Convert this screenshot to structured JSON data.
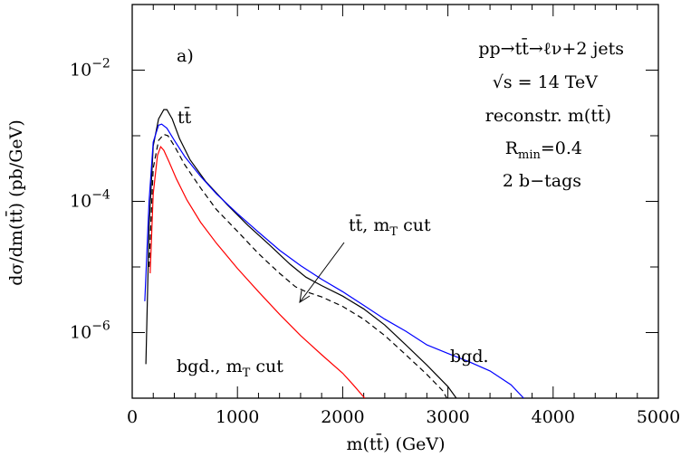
{
  "chart_data": {
    "type": "line",
    "panel_label": "a)",
    "xlabel": "m(tt̄) (GeV)",
    "ylabel": "dσ/dm(tt̄) (pb/GeV)",
    "xlim": [
      0,
      5000
    ],
    "ylim_log10": [
      -7,
      -1
    ],
    "log_y": true,
    "x_ticks": [
      "0",
      "1000",
      "2000",
      "3000",
      "4000",
      "5000"
    ],
    "y_ticks": [
      {
        "exp": -6,
        "base": "10",
        "power": "−6"
      },
      {
        "exp": -4,
        "base": "10",
        "power": "−4"
      },
      {
        "exp": -2,
        "base": "10",
        "power": "−2"
      }
    ],
    "grid": false,
    "info_lines": {
      "process": "pp→tt̄→ℓν+2 jets",
      "energy": "√s = 14 TeV",
      "reco": "reconstr. m(tt̄)",
      "rmin": "R_min=0.4",
      "btags": "2 b−tags"
    },
    "series": [
      {
        "name": "tt̄",
        "color": "#000000",
        "dash": "none",
        "points": [
          [
            130,
            3.3e-07
          ],
          [
            160,
            4e-05
          ],
          [
            200,
            0.0007
          ],
          [
            250,
            0.0018
          ],
          [
            300,
            0.0025
          ],
          [
            330,
            0.0025
          ],
          [
            380,
            0.0018
          ],
          [
            450,
            0.0009
          ],
          [
            550,
            0.00043
          ],
          [
            700,
            0.0002
          ],
          [
            900,
            9e-05
          ],
          [
            1100,
            4.3e-05
          ],
          [
            1300,
            2.2e-05
          ],
          [
            1500,
            1.1e-05
          ],
          [
            1650,
            7e-06
          ],
          [
            1800,
            5.2e-06
          ],
          [
            2000,
            3.6e-06
          ],
          [
            2200,
            2.3e-06
          ],
          [
            2400,
            1.3e-06
          ],
          [
            2600,
            6.5e-07
          ],
          [
            2800,
            3.2e-07
          ],
          [
            3000,
            1.5e-07
          ],
          [
            3080,
            1e-07
          ]
        ]
      },
      {
        "name": "tt̄, m_T cut",
        "color": "#000000",
        "dash": "6,4",
        "points": [
          [
            160,
            1e-05
          ],
          [
            200,
            0.00032
          ],
          [
            250,
            0.00085
          ],
          [
            300,
            0.00105
          ],
          [
            340,
            0.001
          ],
          [
            400,
            0.0007
          ],
          [
            500,
            0.00036
          ],
          [
            650,
            0.00016
          ],
          [
            800,
            7.5e-05
          ],
          [
            1000,
            3.5e-05
          ],
          [
            1200,
            1.6e-05
          ],
          [
            1400,
            8e-06
          ],
          [
            1550,
            5e-06
          ],
          [
            1650,
            4.2e-06
          ],
          [
            1800,
            3.5e-06
          ],
          [
            2000,
            2.5e-06
          ],
          [
            2200,
            1.6e-06
          ],
          [
            2400,
            9e-07
          ],
          [
            2600,
            4.6e-07
          ],
          [
            2800,
            2.3e-07
          ],
          [
            2950,
            1.3e-07
          ],
          [
            2990,
            1e-07
          ]
        ]
      },
      {
        "name": "bgd.",
        "color": "#0000ff",
        "dash": "none",
        "points": [
          [
            120,
            3e-06
          ],
          [
            160,
            0.0001
          ],
          [
            200,
            0.0008
          ],
          [
            250,
            0.00145
          ],
          [
            280,
            0.0015
          ],
          [
            330,
            0.0013
          ],
          [
            400,
            0.00085
          ],
          [
            500,
            0.00048
          ],
          [
            650,
            0.00024
          ],
          [
            800,
            0.00013
          ],
          [
            1000,
            6.5e-05
          ],
          [
            1200,
            3.4e-05
          ],
          [
            1400,
            1.8e-05
          ],
          [
            1600,
            1.05e-05
          ],
          [
            1800,
            6.5e-06
          ],
          [
            2000,
            4.2e-06
          ],
          [
            2200,
            2.6e-06
          ],
          [
            2400,
            1.6e-06
          ],
          [
            2600,
            1.05e-06
          ],
          [
            2800,
            6.5e-07
          ],
          [
            3000,
            4.8e-07
          ],
          [
            3200,
            3.6e-07
          ],
          [
            3400,
            2.6e-07
          ],
          [
            3600,
            1.6e-07
          ],
          [
            3720,
            1e-07
          ]
        ]
      },
      {
        "name": "bgd., m_T cut",
        "color": "#ff0000",
        "dash": "none",
        "points": [
          [
            170,
            8e-06
          ],
          [
            200,
            0.00013
          ],
          [
            240,
            0.0005
          ],
          [
            270,
            0.00068
          ],
          [
            300,
            0.0006
          ],
          [
            350,
            0.0004
          ],
          [
            420,
            0.00022
          ],
          [
            520,
            0.000105
          ],
          [
            650,
            4.8e-05
          ],
          [
            800,
            2.3e-05
          ],
          [
            1000,
            9.5e-06
          ],
          [
            1200,
            4.2e-06
          ],
          [
            1400,
            1.9e-06
          ],
          [
            1600,
            9e-07
          ],
          [
            1800,
            4.6e-07
          ],
          [
            2000,
            2.4e-07
          ],
          [
            2100,
            1.6e-07
          ],
          [
            2210,
            1e-07
          ]
        ]
      }
    ],
    "labels": {
      "tt": "tt̄",
      "tt_cut_main": "tt̄, m",
      "tt_cut_sub": "T",
      "tt_cut_tail": " cut",
      "bgd": "bgd.",
      "bgd_cut_main": "bgd., m",
      "bgd_cut_sub": "T",
      "bgd_cut_tail": " cut"
    }
  }
}
